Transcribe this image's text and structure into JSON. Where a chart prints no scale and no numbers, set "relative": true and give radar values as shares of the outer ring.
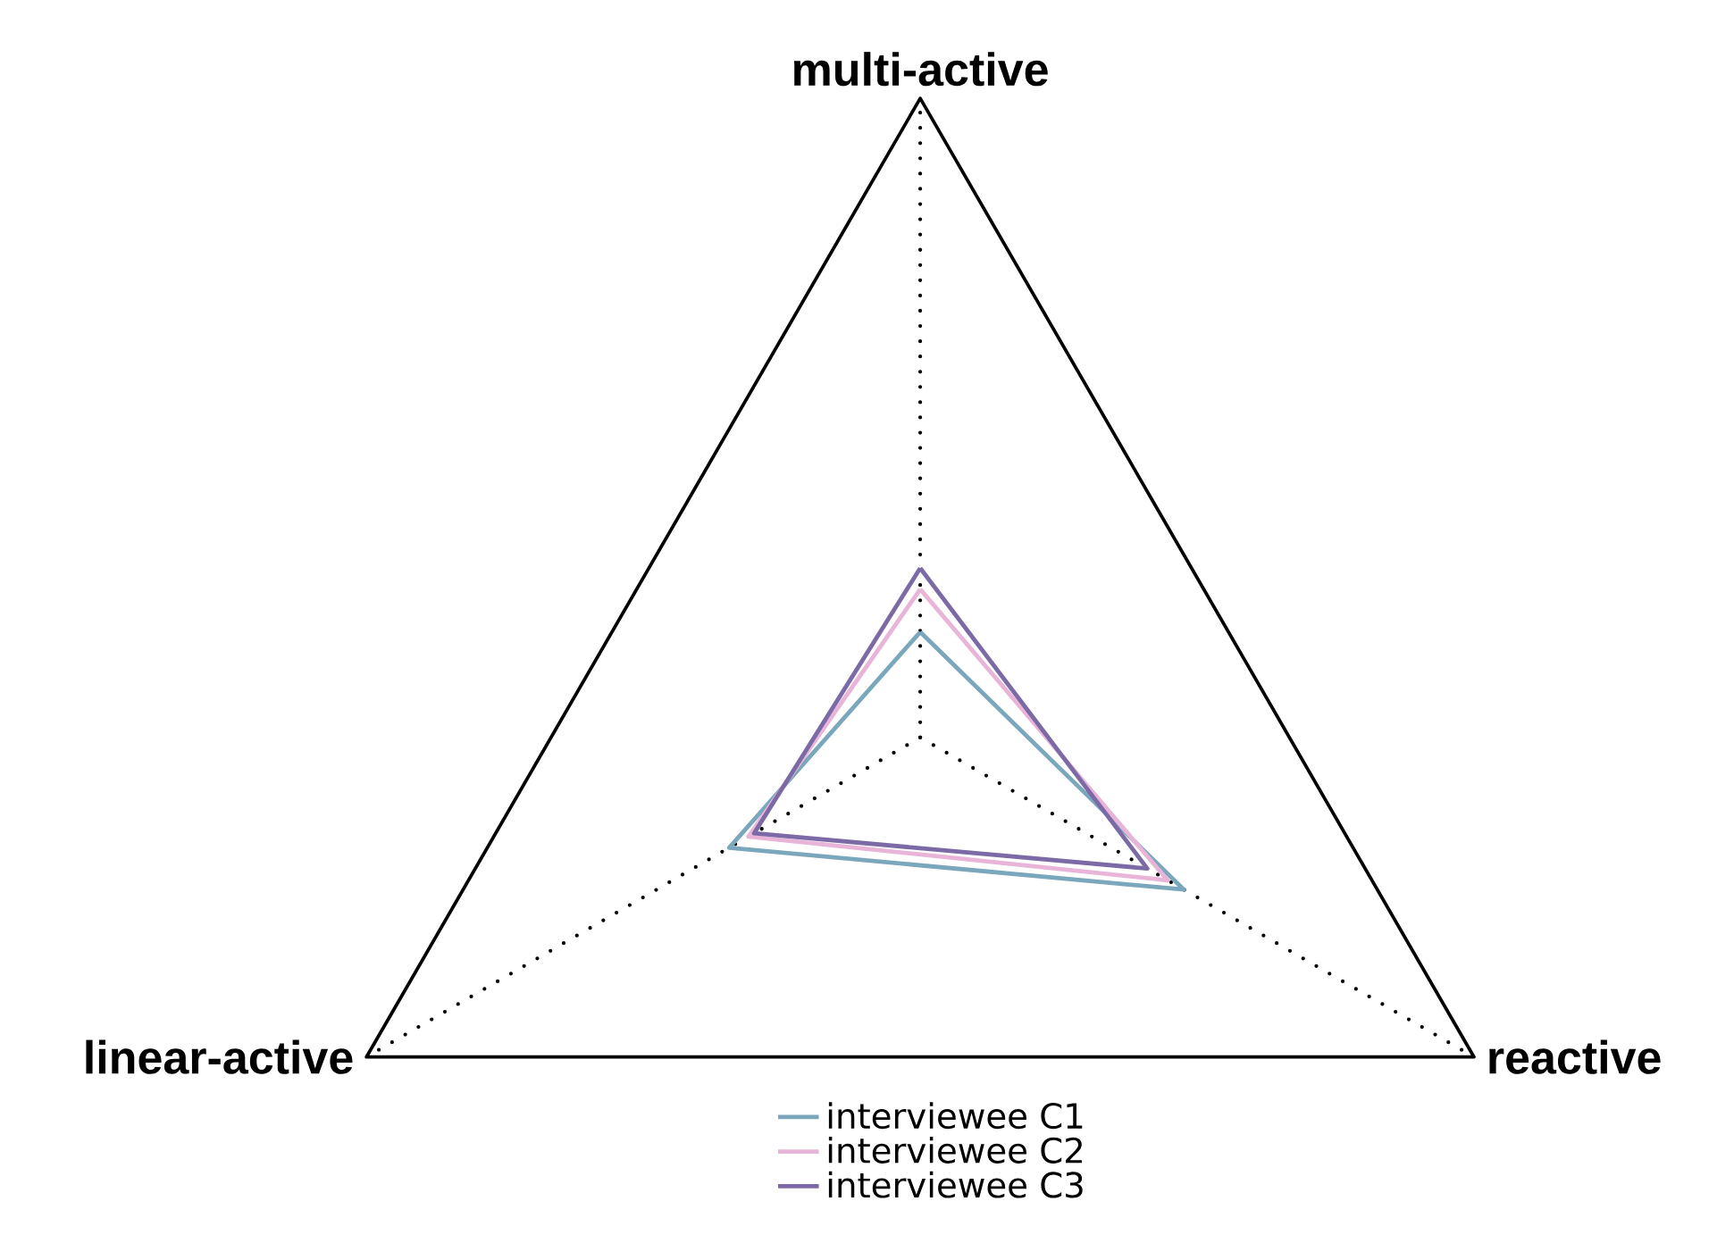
{
  "chart_data": {
    "type": "radar",
    "relative": true,
    "categories": [
      "multi-active",
      "reactive",
      "linear-active"
    ],
    "legend": "bottom",
    "series": [
      {
        "name": "interviewee C1",
        "color": "#7ba7bc",
        "values": [
          0.165,
          0.476,
          0.345
        ]
      },
      {
        "name": "interviewee C2",
        "color": "#e8b4d8",
        "values": [
          0.232,
          0.447,
          0.31
        ]
      },
      {
        "name": "interviewee C3",
        "color": "#7b6aa6",
        "values": [
          0.265,
          0.41,
          0.3
        ]
      }
    ]
  }
}
